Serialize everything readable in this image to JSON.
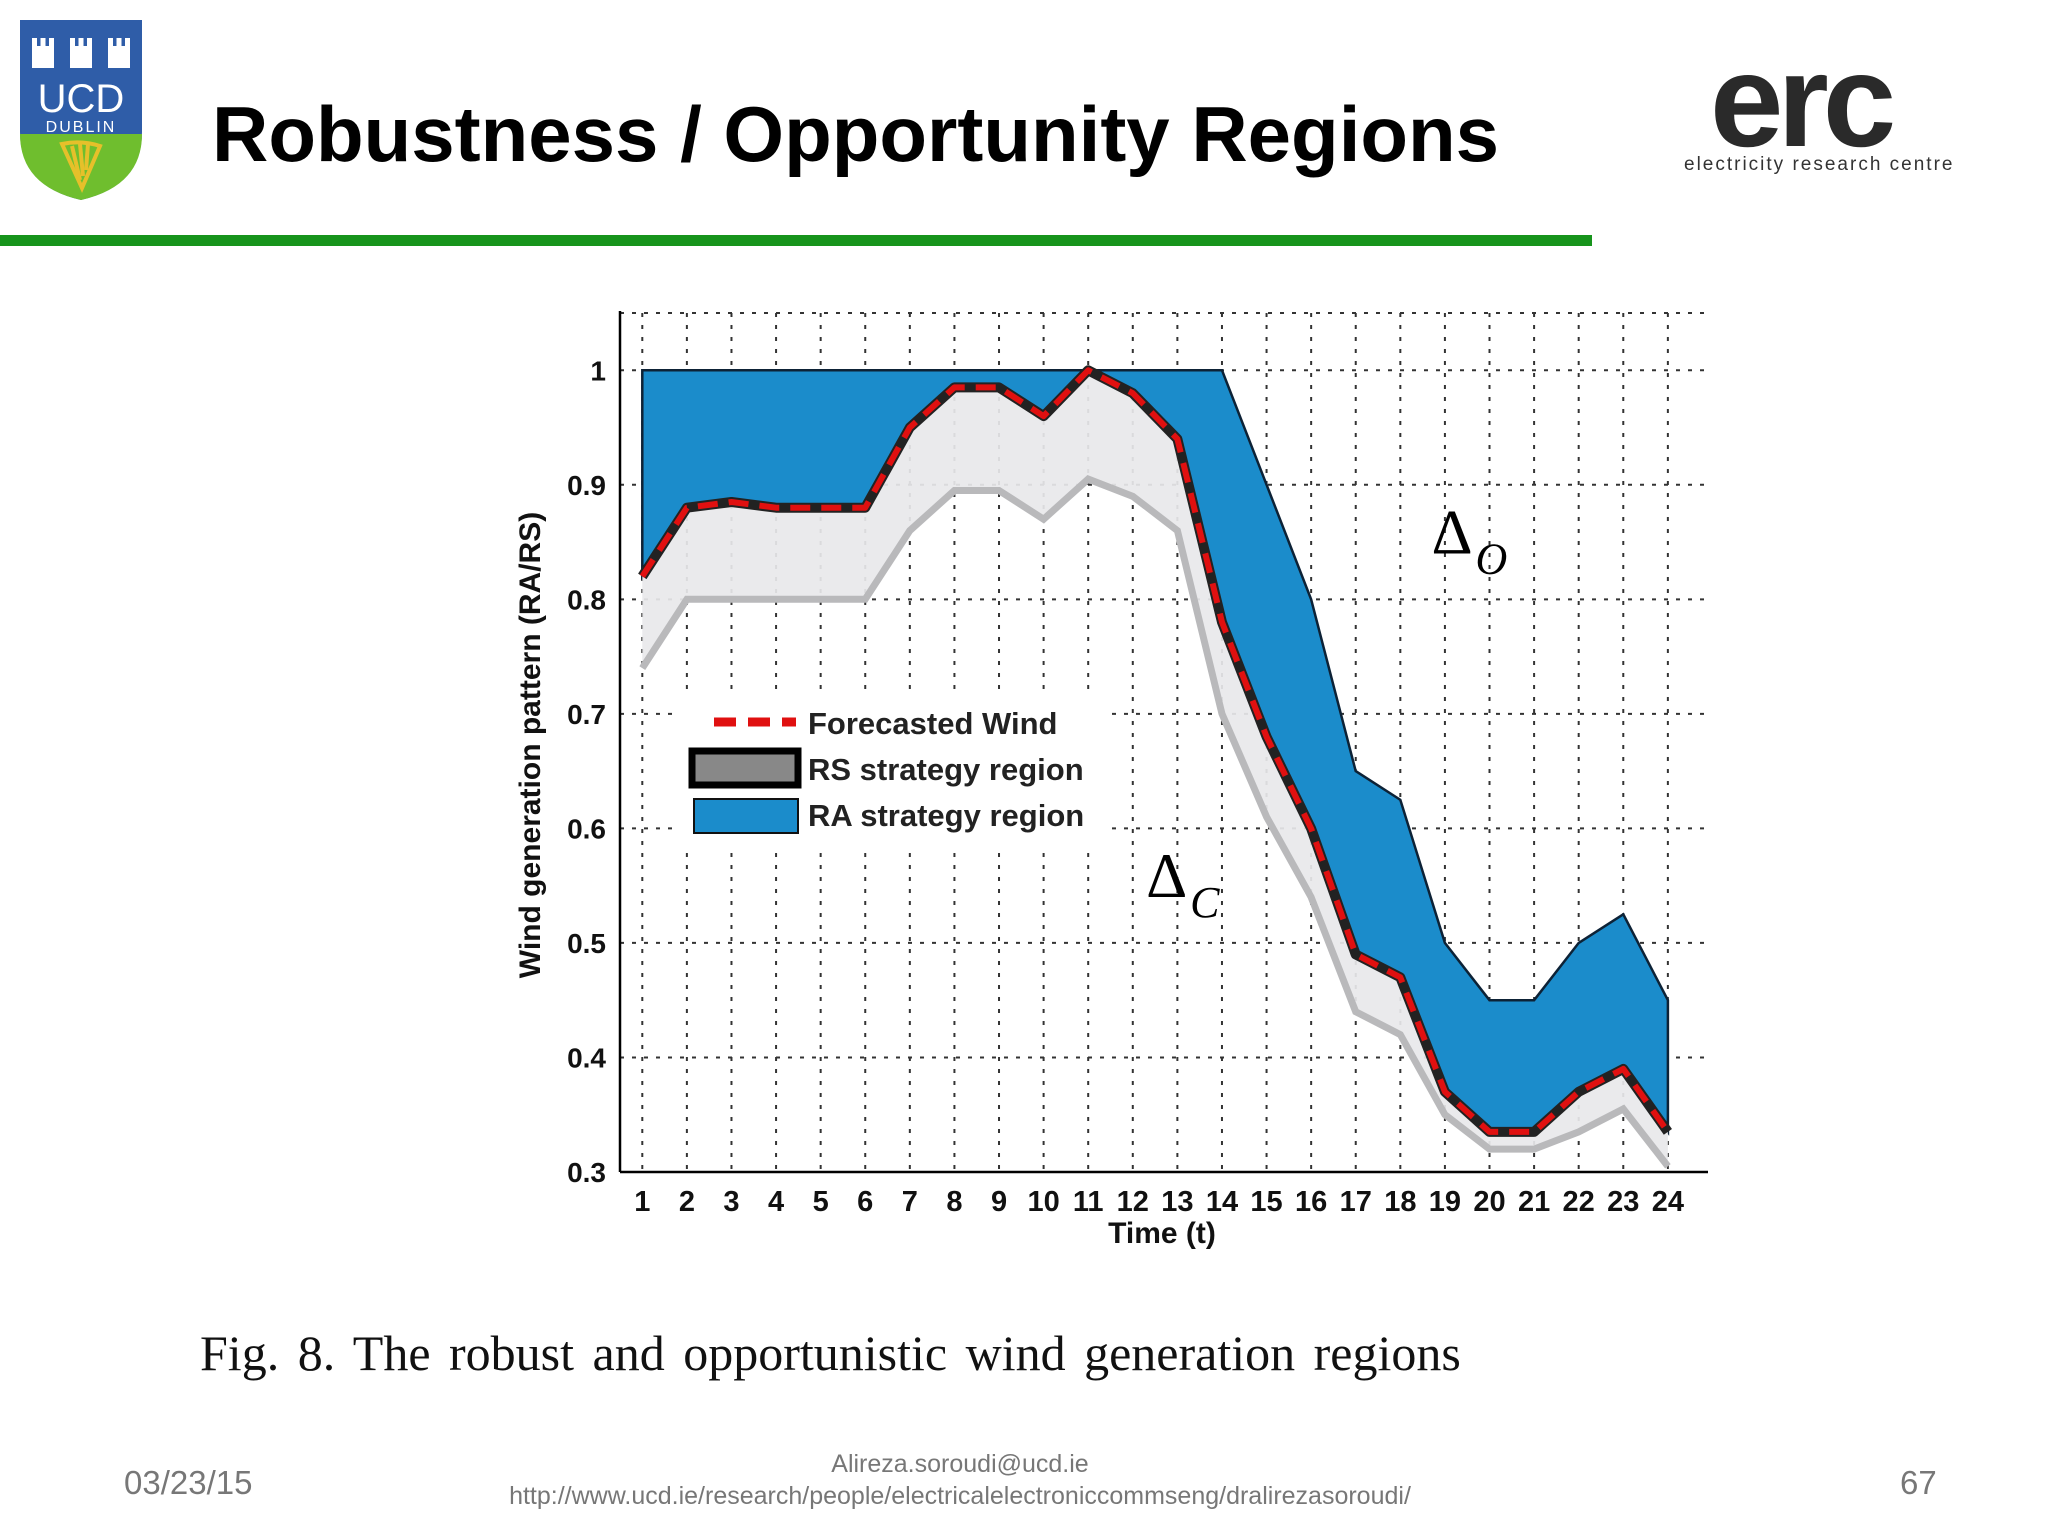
{
  "slide": {
    "title": "Robustness / Opportunity Regions",
    "caption": "Fig. 8.    The robust and opportunistic wind generation regions",
    "footer": {
      "date": "03/23/15",
      "email": "Alireza.soroudi@ucd.ie",
      "url": "http://www.ucd.ie/research/people/electricalelectroniccommseng/dralirezasoroudi/",
      "page": "67"
    }
  },
  "logos": {
    "ucd": {
      "line1": "UCD",
      "line2": "DUBLIN"
    },
    "erc": {
      "word": "erc",
      "subtitle": "electricity research centre"
    }
  },
  "colors": {
    "accent_bar": "#17941c",
    "ra_region": "#1b8ccb",
    "rs_region": "#e8e8ea",
    "forecast_line": "#e01010",
    "text_gray": "#777777"
  },
  "chart_data": {
    "type": "area",
    "title": "",
    "xlabel": "Time (t)",
    "ylabel": "Wind generation pattern (RA/RS)",
    "x": [
      1,
      2,
      3,
      4,
      5,
      6,
      7,
      8,
      9,
      10,
      11,
      12,
      13,
      14,
      15,
      16,
      17,
      18,
      19,
      20,
      21,
      22,
      23,
      24
    ],
    "xlim": [
      0.5,
      24.9
    ],
    "ylim": [
      0.3,
      1.05
    ],
    "yticks": [
      0.3,
      0.4,
      0.5,
      0.6,
      0.7,
      0.8,
      0.9,
      1
    ],
    "ytick_labels": [
      "0.3",
      "0.4",
      "0.5",
      "0.6",
      "0.7",
      "0.8",
      "0.9",
      "1"
    ],
    "grid": true,
    "legend_position": "center-left",
    "series": [
      {
        "name": "Forecasted Wind",
        "style": "dashed",
        "values": [
          0.82,
          0.88,
          0.885,
          0.88,
          0.88,
          0.88,
          0.95,
          0.985,
          0.985,
          0.96,
          1.0,
          0.98,
          0.94,
          0.78,
          0.68,
          0.6,
          0.49,
          0.47,
          0.37,
          0.335,
          0.335,
          0.37,
          0.39,
          0.335
        ]
      },
      {
        "name": "RS strategy region",
        "type": "band",
        "lower": [
          0.74,
          0.8,
          0.8,
          0.8,
          0.8,
          0.8,
          0.86,
          0.895,
          0.895,
          0.87,
          0.905,
          0.89,
          0.86,
          0.7,
          0.61,
          0.54,
          0.44,
          0.42,
          0.35,
          0.32,
          0.32,
          0.335,
          0.355,
          0.305
        ],
        "upper": [
          0.82,
          0.88,
          0.885,
          0.88,
          0.88,
          0.88,
          0.95,
          0.985,
          0.985,
          0.96,
          1.0,
          0.98,
          0.94,
          0.78,
          0.68,
          0.6,
          0.49,
          0.47,
          0.37,
          0.335,
          0.335,
          0.37,
          0.39,
          0.335
        ]
      },
      {
        "name": "RA strategy region",
        "type": "band",
        "lower": [
          0.82,
          0.88,
          0.885,
          0.88,
          0.88,
          0.88,
          0.95,
          0.985,
          0.985,
          0.96,
          1.0,
          0.98,
          0.94,
          0.78,
          0.68,
          0.6,
          0.49,
          0.47,
          0.37,
          0.335,
          0.335,
          0.37,
          0.39,
          0.335
        ],
        "upper": [
          1.0,
          1.0,
          1.0,
          1.0,
          1.0,
          1.0,
          1.0,
          1.0,
          1.0,
          1.0,
          1.0,
          1.0,
          1.0,
          1.0,
          0.9,
          0.8,
          0.65,
          0.625,
          0.5,
          0.45,
          0.45,
          0.5,
          0.525,
          0.45
        ]
      }
    ],
    "annotations": [
      {
        "text": "Δ",
        "subscript": "O",
        "at": [
          18.7,
          0.84
        ]
      },
      {
        "text": "Δ",
        "subscript": "C",
        "at": [
          12.3,
          0.54
        ]
      }
    ]
  }
}
